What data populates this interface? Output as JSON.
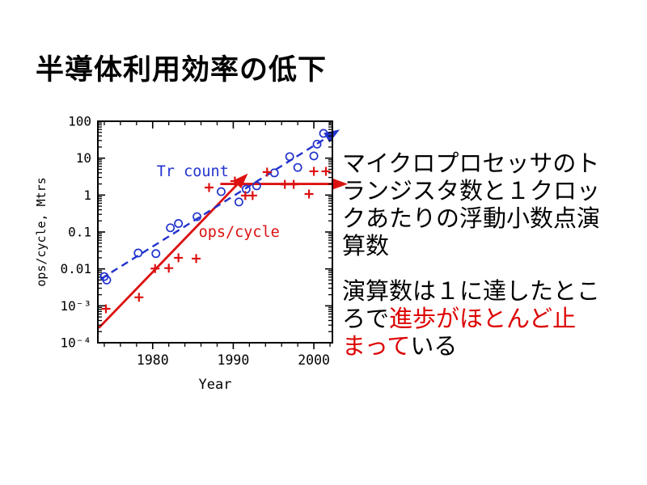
{
  "slide": {
    "title": "半導体利用効率の低下"
  },
  "notes": {
    "paragraph1_lines": [
      "マイクロプロセッサのト",
      "ランジスタ数と１クロッ",
      "クあたりの浮動小数点演",
      "算数"
    ],
    "paragraph2": {
      "line1_black": "演算数は１に達したとこ",
      "line2_black": "ろで",
      "line2_red": "進歩がほとんど止",
      "line3_red": "まって",
      "line3_black": "いる"
    },
    "highlight_color": "#dd0000"
  },
  "chart_data": {
    "type": "scatter",
    "xlabel": "Year",
    "ylabel": "ops/cycle, Mtrs",
    "x_range": [
      1973.2,
      2002.3
    ],
    "y_range_log": [
      -4,
      2
    ],
    "x_major_ticks": [
      1980,
      1990,
      2000
    ],
    "x_minor_tick_step_years": 2,
    "y_tick_labels": [
      "100",
      "10",
      "1",
      "0.1",
      "0.01",
      "10⁻³",
      "10⁻⁴"
    ],
    "grid": false,
    "colors": {
      "blue": "#2233cc",
      "red": "#dd1111",
      "axis": "#000000"
    },
    "series": [
      {
        "name": "Tr count",
        "color": "#2233cc",
        "marker": "circle",
        "points": [
          [
            1974.0,
            0.0062
          ],
          [
            1974.3,
            0.005
          ],
          [
            1978.2,
            0.027
          ],
          [
            1980.4,
            0.026
          ],
          [
            1982.2,
            0.13
          ],
          [
            1983.2,
            0.17
          ],
          [
            1985.5,
            0.26
          ],
          [
            1988.5,
            1.24
          ],
          [
            1990.7,
            0.65
          ],
          [
            1991.6,
            1.45
          ],
          [
            1992.9,
            1.78
          ],
          [
            1995.1,
            4.0
          ],
          [
            1997.0,
            11
          ],
          [
            1998.0,
            5.6
          ],
          [
            2000.0,
            11.5
          ],
          [
            2000.4,
            24
          ],
          [
            2001.2,
            47
          ]
        ]
      },
      {
        "name": "ops/cycle",
        "color": "#dd1111",
        "marker": "plus",
        "points": [
          [
            1974.2,
            0.00083
          ],
          [
            1978.3,
            0.0017
          ],
          [
            1980.3,
            0.0102
          ],
          [
            1982.0,
            0.0105
          ],
          [
            1983.2,
            0.02
          ],
          [
            1985.4,
            0.019
          ],
          [
            1987.0,
            1.6
          ],
          [
            1990.2,
            2.4
          ],
          [
            1991.5,
            0.97
          ],
          [
            1992.4,
            0.97
          ],
          [
            1994.2,
            4.2
          ],
          [
            1996.4,
            1.95
          ],
          [
            1997.5,
            1.95
          ],
          [
            1999.4,
            1.07
          ],
          [
            2000.0,
            4.4
          ],
          [
            2001.5,
            4.4
          ]
        ]
      }
    ],
    "trend_arrows": [
      {
        "name": "ops-cycle-growth",
        "color": "#dd1111",
        "style": "solid",
        "from": [
          1973.3,
          0.00025
        ],
        "to": [
          1990.9,
          2.4
        ]
      },
      {
        "name": "tr-count-growth",
        "color": "#2233cc",
        "style": "dashed",
        "from": [
          1973.6,
          0.0054
        ],
        "to": [
          2002.1,
          42
        ]
      },
      {
        "name": "ops-cycle-plateau",
        "color": "#dd1111",
        "style": "solid",
        "from": [
          1988.4,
          2.0
        ],
        "to": [
          2002.9,
          2.0
        ]
      }
    ],
    "labels": [
      {
        "text": "Tr count",
        "color": "#2233cc",
        "x": 1980.5,
        "y": 4.4
      },
      {
        "text": "ops/cycle",
        "color": "#dd1111",
        "x": 1985.7,
        "y": 0.1
      }
    ]
  }
}
